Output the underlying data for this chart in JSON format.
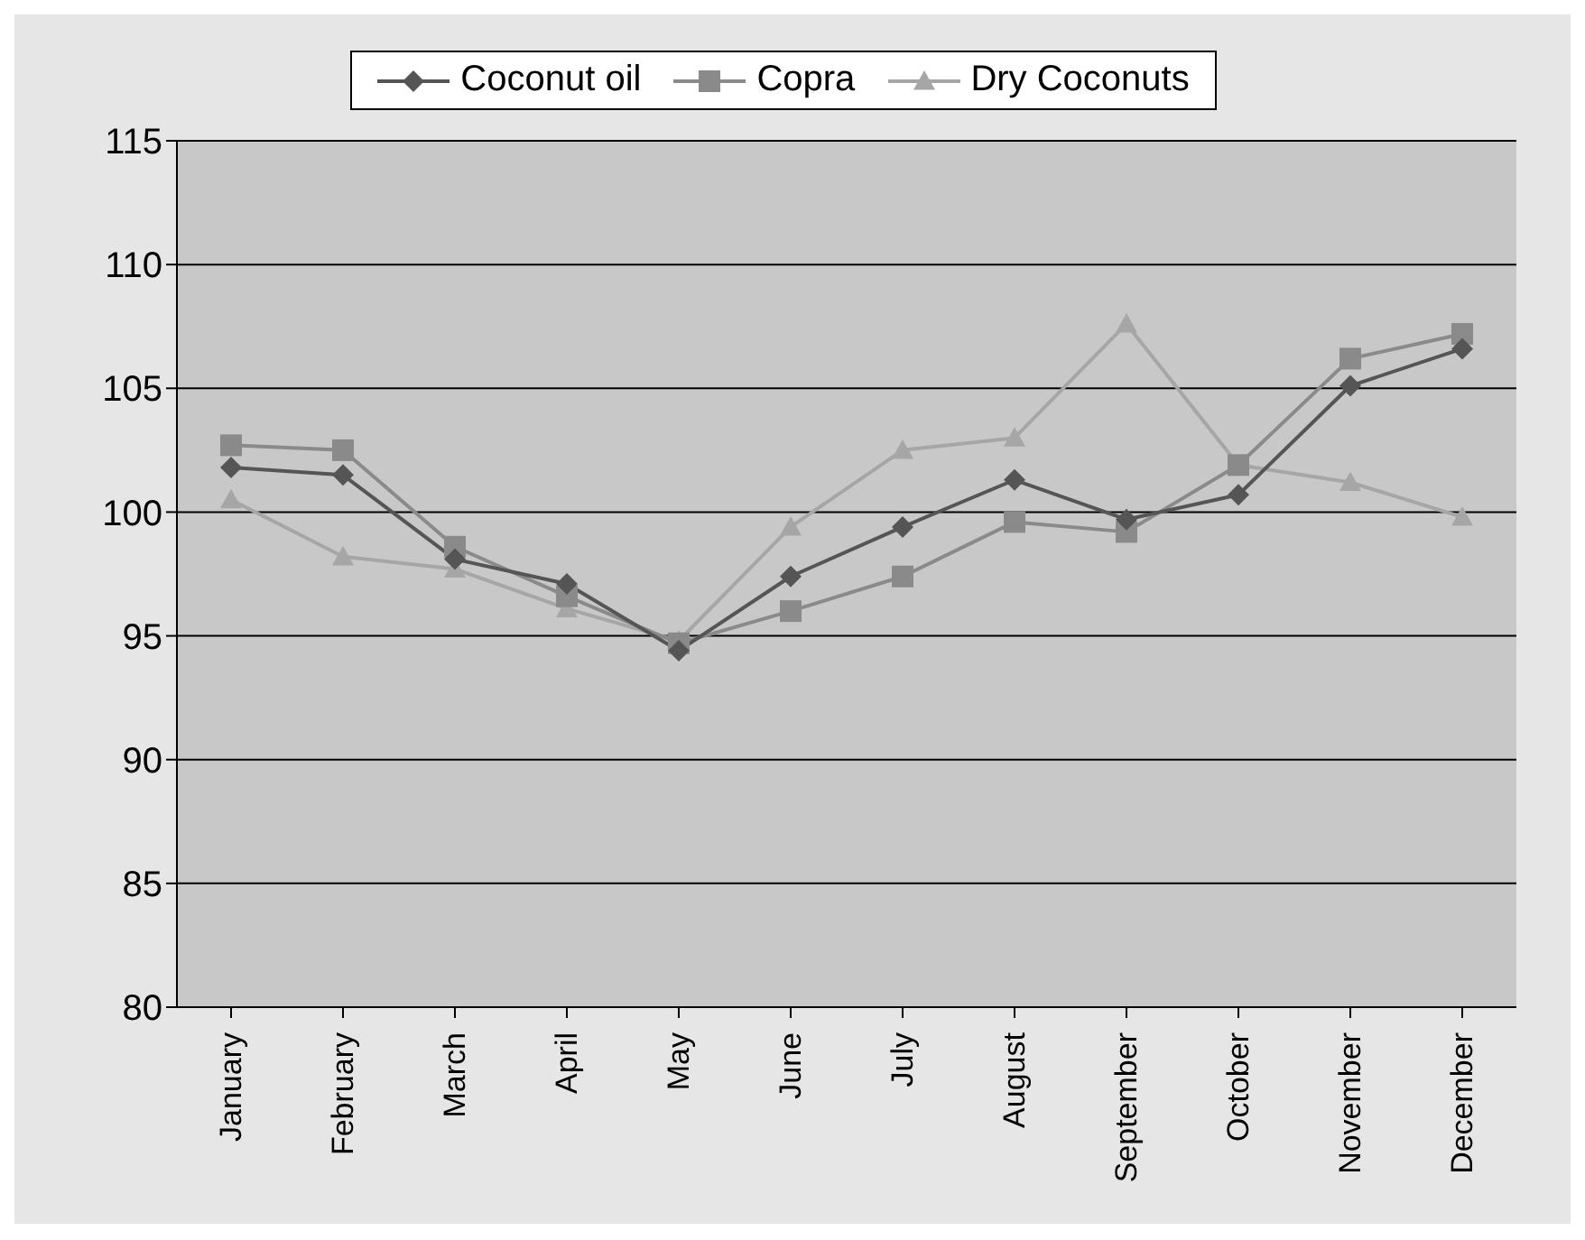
{
  "chart_data": {
    "type": "line",
    "categories": [
      "January",
      "February",
      "March",
      "April",
      "May",
      "June",
      "July",
      "August",
      "September",
      "October",
      "November",
      "December"
    ],
    "series": [
      {
        "name": "Coconut oil",
        "color": "#555555",
        "marker": "diamond",
        "values": [
          101.8,
          101.5,
          98.1,
          97.1,
          94.4,
          97.4,
          99.4,
          101.3,
          99.7,
          100.7,
          105.1,
          106.6
        ]
      },
      {
        "name": "Copra",
        "color": "#8a8a8a",
        "marker": "square",
        "values": [
          102.7,
          102.5,
          98.6,
          96.6,
          94.7,
          96.0,
          97.4,
          99.6,
          99.2,
          101.9,
          106.2,
          107.2
        ]
      },
      {
        "name": "Dry Coconuts",
        "color": "#a6a6a6",
        "marker": "triangle",
        "values": [
          100.5,
          98.2,
          97.7,
          96.1,
          94.8,
          99.4,
          102.5,
          103.0,
          107.6,
          101.9,
          101.2,
          99.8
        ]
      }
    ],
    "ylim": [
      80,
      115
    ],
    "yticks": [
      80,
      85,
      90,
      95,
      100,
      105,
      110,
      115
    ],
    "grid": "y",
    "legend": "top"
  }
}
